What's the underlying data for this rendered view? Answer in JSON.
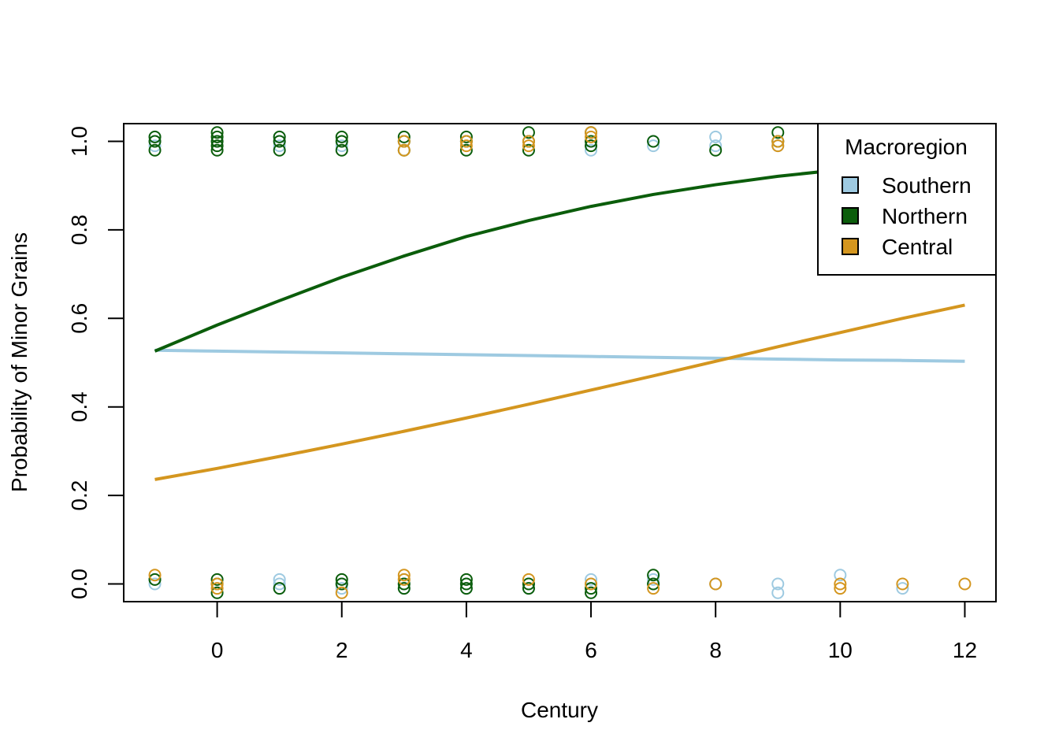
{
  "chart_data": {
    "type": "scatter",
    "title": "",
    "xlabel": "Century",
    "ylabel": "Probability of Minor Grains",
    "xlim": [
      -1.5,
      12.5
    ],
    "ylim": [
      -0.04,
      1.04
    ],
    "x_ticks": [
      "0",
      "2",
      "4",
      "6",
      "8",
      "10",
      "12"
    ],
    "y_ticks": [
      "0.0",
      "0.2",
      "0.4",
      "0.6",
      "0.8",
      "1.0"
    ],
    "legend": {
      "title": "Macroregion",
      "position": "top-right",
      "entries": [
        "Southern",
        "Northern",
        "Central"
      ]
    },
    "series": [
      {
        "name": "Southern",
        "color": "#9ecae1",
        "fit_x": [
          -1,
          0,
          1,
          2,
          3,
          4,
          5,
          6,
          7,
          8,
          9,
          10,
          11,
          12
        ],
        "fit_y": [
          0.528,
          0.526,
          0.524,
          0.522,
          0.52,
          0.518,
          0.516,
          0.514,
          0.512,
          0.51,
          0.508,
          0.506,
          0.505,
          0.503
        ],
        "points": [
          [
            -1,
            1.0
          ],
          [
            -1,
            1.01
          ],
          [
            -1,
            0.99
          ],
          [
            -1,
            0.0
          ],
          [
            -1,
            0.01
          ],
          [
            0,
            1.0
          ],
          [
            1,
            1.0
          ],
          [
            1,
            1.01
          ],
          [
            1,
            0.99
          ],
          [
            1,
            0.0
          ],
          [
            1,
            0.01
          ],
          [
            1,
            -0.01
          ],
          [
            2,
            0.99
          ],
          [
            2,
            0.0
          ],
          [
            2,
            -0.01
          ],
          [
            3,
            1.0
          ],
          [
            3,
            0.0
          ],
          [
            3,
            -0.01
          ],
          [
            3,
            0.01
          ],
          [
            4,
            1.0
          ],
          [
            4,
            0.0
          ],
          [
            4,
            -0.01
          ],
          [
            5,
            0.0
          ],
          [
            5,
            -0.01
          ],
          [
            6,
            0.98
          ],
          [
            6,
            0.0
          ],
          [
            6,
            0.01
          ],
          [
            7,
            1.0
          ],
          [
            7,
            0.99
          ],
          [
            7,
            0.0
          ],
          [
            7,
            0.01
          ],
          [
            8,
            1.01
          ],
          [
            8,
            0.99
          ],
          [
            8,
            0.0
          ],
          [
            9,
            0.99
          ],
          [
            9,
            1.0
          ],
          [
            9,
            0.0
          ],
          [
            9,
            -0.02
          ],
          [
            10,
            0.02
          ],
          [
            11,
            -0.01
          ]
        ]
      },
      {
        "name": "Northern",
        "color": "#0b5d0b",
        "fit_x": [
          -1,
          0,
          1,
          2,
          3,
          4,
          5,
          6,
          7,
          8,
          9,
          10,
          11,
          12
        ],
        "fit_y": [
          0.526,
          0.585,
          0.64,
          0.693,
          0.741,
          0.785,
          0.821,
          0.853,
          0.88,
          0.902,
          0.921,
          0.936,
          0.948,
          0.958
        ],
        "points": [
          [
            -1,
            0.98
          ],
          [
            -1,
            1.0
          ],
          [
            -1,
            1.01
          ],
          [
            -1,
            0.01
          ],
          [
            0,
            1.0
          ],
          [
            0,
            0.99
          ],
          [
            0,
            1.01
          ],
          [
            0,
            0.98
          ],
          [
            0,
            1.02
          ],
          [
            0,
            0.0
          ],
          [
            0,
            0.01
          ],
          [
            0,
            -0.02
          ],
          [
            1,
            1.0
          ],
          [
            1,
            0.98
          ],
          [
            1,
            1.01
          ],
          [
            1,
            -0.01
          ],
          [
            2,
            1.0
          ],
          [
            2,
            0.98
          ],
          [
            2,
            1.01
          ],
          [
            2,
            0.0
          ],
          [
            2,
            0.01
          ],
          [
            3,
            1.0
          ],
          [
            3,
            1.01
          ],
          [
            3,
            0.98
          ],
          [
            3,
            0.0
          ],
          [
            3,
            -0.01
          ],
          [
            4,
            1.0
          ],
          [
            4,
            0.98
          ],
          [
            4,
            1.01
          ],
          [
            4,
            0.0
          ],
          [
            4,
            0.01
          ],
          [
            4,
            -0.01
          ],
          [
            5,
            1.0
          ],
          [
            5,
            0.98
          ],
          [
            5,
            1.02
          ],
          [
            5,
            0.0
          ],
          [
            5,
            -0.01
          ],
          [
            6,
            1.0
          ],
          [
            6,
            0.99
          ],
          [
            6,
            1.02
          ],
          [
            6,
            -0.01
          ],
          [
            6,
            -0.02
          ],
          [
            7,
            1.0
          ],
          [
            7,
            0.0
          ],
          [
            7,
            0.02
          ],
          [
            8,
            0.98
          ],
          [
            9,
            1.0
          ],
          [
            9,
            1.02
          ]
        ]
      },
      {
        "name": "Central",
        "color": "#d4961f",
        "fit_x": [
          -1,
          0,
          1,
          2,
          3,
          4,
          5,
          6,
          7,
          8,
          9,
          10,
          11,
          12
        ],
        "fit_y": [
          0.236,
          0.261,
          0.288,
          0.316,
          0.345,
          0.375,
          0.406,
          0.438,
          0.47,
          0.503,
          0.536,
          0.568,
          0.6,
          0.63
        ],
        "points": [
          [
            -1,
            0.02
          ],
          [
            0,
            -0.01
          ],
          [
            0,
            0.0
          ],
          [
            2,
            -0.02
          ],
          [
            3,
            1.0
          ],
          [
            3,
            0.98
          ],
          [
            3,
            0.01
          ],
          [
            3,
            0.02
          ],
          [
            4,
            0.99
          ],
          [
            4,
            1.0
          ],
          [
            5,
            1.0
          ],
          [
            5,
            0.99
          ],
          [
            5,
            0.01
          ],
          [
            6,
            1.01
          ],
          [
            6,
            1.02
          ],
          [
            6,
            0.0
          ],
          [
            7,
            -0.01
          ],
          [
            8,
            0.0
          ],
          [
            9,
            1.0
          ],
          [
            9,
            0.99
          ],
          [
            10,
            0.0
          ],
          [
            10,
            -0.01
          ],
          [
            11,
            0.0
          ],
          [
            12,
            0.0
          ]
        ]
      }
    ]
  }
}
